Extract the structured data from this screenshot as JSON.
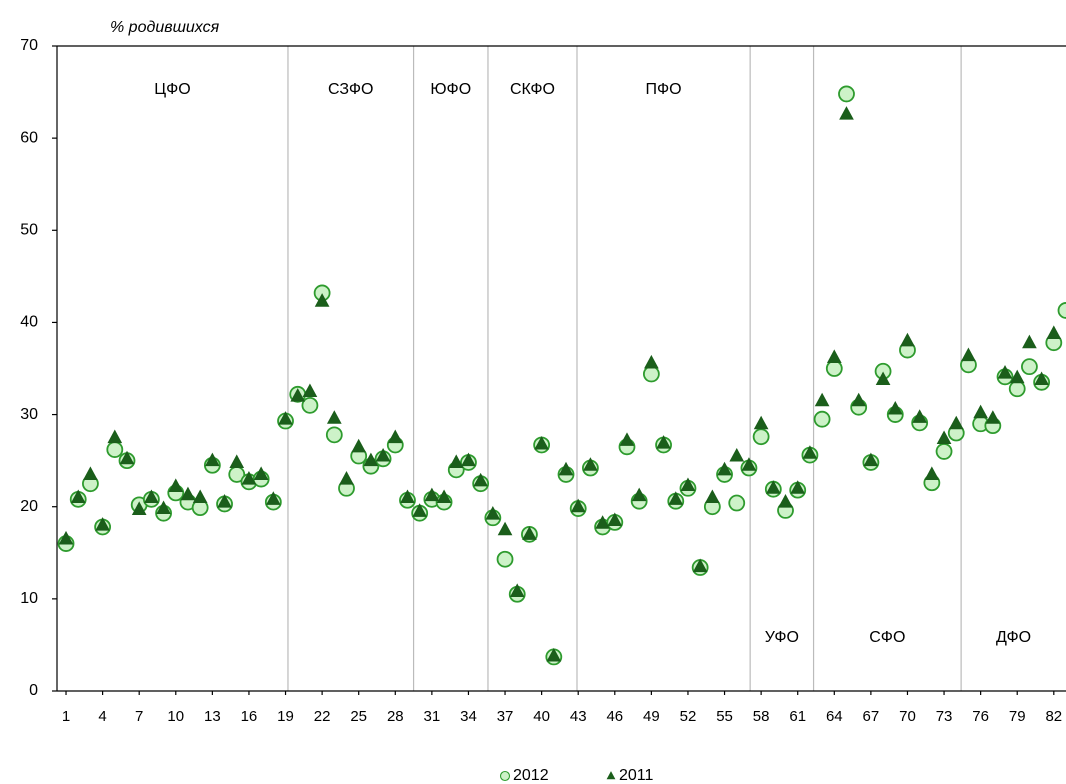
{
  "chart_data": {
    "type": "scatter",
    "y_label": "% родившихся",
    "xlim": [
      0.26,
      83
    ],
    "ylim": [
      0,
      70
    ],
    "xticks": [
      1,
      4,
      7,
      10,
      13,
      16,
      19,
      22,
      25,
      28,
      31,
      34,
      37,
      40,
      43,
      46,
      49,
      52,
      55,
      58,
      61,
      64,
      67,
      70,
      73,
      76,
      79,
      82
    ],
    "yticks": [
      0,
      10,
      20,
      30,
      40,
      50,
      60,
      70
    ],
    "dividers": [
      19.2,
      29.5,
      35.6,
      42.9,
      57.1,
      62.3,
      74.4
    ],
    "regions": [
      "ЦФО",
      "СЗФО",
      "ЮФО",
      "СКФО",
      "ПФО",
      "УФО",
      "СФО",
      "ДФО"
    ],
    "x": [
      1,
      2,
      3,
      4,
      5,
      6,
      7,
      8,
      9,
      10,
      11,
      12,
      13,
      14,
      15,
      16,
      17,
      18,
      19,
      20,
      21,
      22,
      23,
      24,
      25,
      26,
      27,
      28,
      29,
      30,
      31,
      32,
      33,
      34,
      35,
      36,
      37,
      38,
      39,
      40,
      41,
      42,
      43,
      44,
      45,
      46,
      47,
      48,
      49,
      50,
      51,
      52,
      53,
      54,
      55,
      56,
      57,
      58,
      59,
      60,
      61,
      62,
      63,
      64,
      65,
      66,
      67,
      68,
      69,
      70,
      71,
      72,
      73,
      74,
      75,
      76,
      77,
      78,
      79,
      80,
      81,
      82,
      83
    ],
    "series": [
      {
        "name": "2012",
        "marker": "circle",
        "color": "#cdf2c8",
        "stroke": "#2e9b2e",
        "values": [
          16,
          20.8,
          22.5,
          17.8,
          26.2,
          25,
          20.2,
          20.8,
          19.3,
          21.5,
          20.5,
          19.9,
          24.5,
          20.3,
          23.5,
          22.7,
          23,
          20.5,
          29.3,
          32.2,
          31,
          43.2,
          27.8,
          22,
          25.5,
          24.4,
          25.2,
          26.7,
          20.7,
          19.3,
          20.8,
          20.5,
          24,
          24.8,
          22.5,
          18.8,
          14.3,
          10.5,
          17,
          26.7,
          3.7,
          23.5,
          19.8,
          24.2,
          17.8,
          18.3,
          26.5,
          20.6,
          34.4,
          26.7,
          20.6,
          22,
          13.4,
          20,
          23.5,
          20.4,
          24.2,
          27.6,
          21.9,
          19.6,
          21.8,
          25.6,
          29.5,
          35,
          64.8,
          30.8,
          24.8,
          34.7,
          30,
          37,
          29.1,
          22.6,
          26,
          28,
          35.4,
          29,
          28.8,
          34.1,
          32.8,
          35.2,
          33.5,
          37.8,
          41.3
        ]
      },
      {
        "name": "2011",
        "marker": "triangle",
        "color": "#1b5e1b",
        "stroke": "#1b5e1b",
        "values": [
          16.5,
          21,
          23.5,
          18,
          27.5,
          25.2,
          19.7,
          21,
          19.8,
          22.2,
          21.3,
          21,
          25,
          20.5,
          24.8,
          23,
          23.5,
          20.8,
          29.5,
          32,
          32.5,
          42.3,
          29.6,
          23,
          26.5,
          25,
          25.5,
          27.5,
          21,
          19.5,
          21.2,
          21,
          24.8,
          25,
          22.8,
          19.2,
          17.5,
          10.8,
          17,
          26.8,
          3.8,
          24,
          20,
          24.5,
          18.2,
          18.5,
          27.2,
          21.2,
          35.6,
          26.9,
          20.8,
          22.3,
          13.5,
          21,
          24,
          25.5,
          24.5,
          29,
          22,
          20.5,
          22,
          25.8,
          31.5,
          36.2,
          62.6,
          31.5,
          25,
          33.8,
          30.6,
          38,
          29.7,
          23.5,
          27.4,
          29,
          36.4,
          30.2,
          29.6,
          34.5,
          34,
          37.8,
          33.8,
          38.8,
          null
        ]
      }
    ]
  }
}
